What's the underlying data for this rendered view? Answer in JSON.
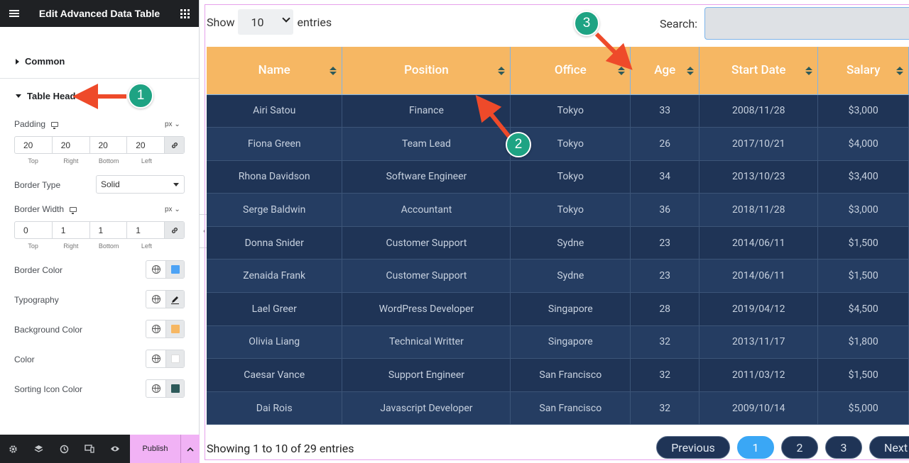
{
  "sidebar": {
    "title": "Edit Advanced Data Table",
    "common_label": "Common",
    "table_head_label": "Table Head",
    "padding": {
      "label": "Padding",
      "unit": "px",
      "values": [
        "20",
        "20",
        "20",
        "20"
      ],
      "sides": [
        "Top",
        "Right",
        "Bottom",
        "Left"
      ]
    },
    "border_type": {
      "label": "Border Type",
      "value": "Solid"
    },
    "border_width": {
      "label": "Border Width",
      "unit": "px",
      "values": [
        "0",
        "1",
        "1",
        "1"
      ],
      "sides": [
        "Top",
        "Right",
        "Bottom",
        "Left"
      ]
    },
    "border_color": {
      "label": "Border Color",
      "swatch": "#4da3f5"
    },
    "typography": {
      "label": "Typography"
    },
    "background_color": {
      "label": "Background Color",
      "swatch": "#f6b763"
    },
    "color": {
      "label": "Color",
      "swatch": "#ffffff"
    },
    "sorting_icon_color": {
      "label": "Sorting Icon Color",
      "swatch": "#2d5a5a"
    },
    "footer": {
      "publish_label": "Publish"
    }
  },
  "table_controls": {
    "show_label": "Show",
    "entries_value": "10",
    "entries_label": "entries",
    "search_label": "Search:"
  },
  "table": {
    "columns": [
      "Name",
      "Position",
      "Office",
      "Age",
      "Start Date",
      "Salary"
    ],
    "rows": [
      [
        "Airi Satou",
        "Finance",
        "Tokyo",
        "33",
        "2008/11/28",
        "$3,000"
      ],
      [
        "Fiona Green",
        "Team Lead",
        "Tokyo",
        "26",
        "2017/10/21",
        "$4,000"
      ],
      [
        "Rhona Davidson",
        "Software Engineer",
        "Tokyo",
        "34",
        "2013/10/23",
        "$3,400"
      ],
      [
        "Serge Baldwin",
        "Accountant",
        "Tokyo",
        "36",
        "2018/11/28",
        "$3,000"
      ],
      [
        "Donna Snider",
        "Customer Support",
        "Sydne",
        "23",
        "2014/06/11",
        "$1,500"
      ],
      [
        "Zenaida Frank",
        "Customer Support",
        "Sydne",
        "23",
        "2014/06/11",
        "$1,500"
      ],
      [
        "Lael Greer",
        "WordPress Developer",
        "Singapore",
        "28",
        "2019/04/12",
        "$4,500"
      ],
      [
        "Olivia Liang",
        "Technical Writter",
        "Singapore",
        "32",
        "2013/11/17",
        "$1,800"
      ],
      [
        "Caesar Vance",
        "Support Engineer",
        "San Francisco",
        "32",
        "2011/03/12",
        "$1,500"
      ],
      [
        "Dai Rois",
        "Javascript Developer",
        "San Francisco",
        "32",
        "2009/10/14",
        "$5,000"
      ]
    ]
  },
  "footer": {
    "info": "Showing 1 to 10 of 29 entries",
    "prev_label": "Previous",
    "pages": [
      "1",
      "2",
      "3"
    ],
    "next_label": "Next"
  },
  "annotations": [
    "1",
    "2",
    "3"
  ],
  "colors": {
    "header_bg": "#f6b763",
    "row_odd": "#1f3456",
    "row_even": "#253d62",
    "badge": "#1ea383",
    "arrow": "#ee4a2a",
    "active_page": "#3aa7f5"
  }
}
